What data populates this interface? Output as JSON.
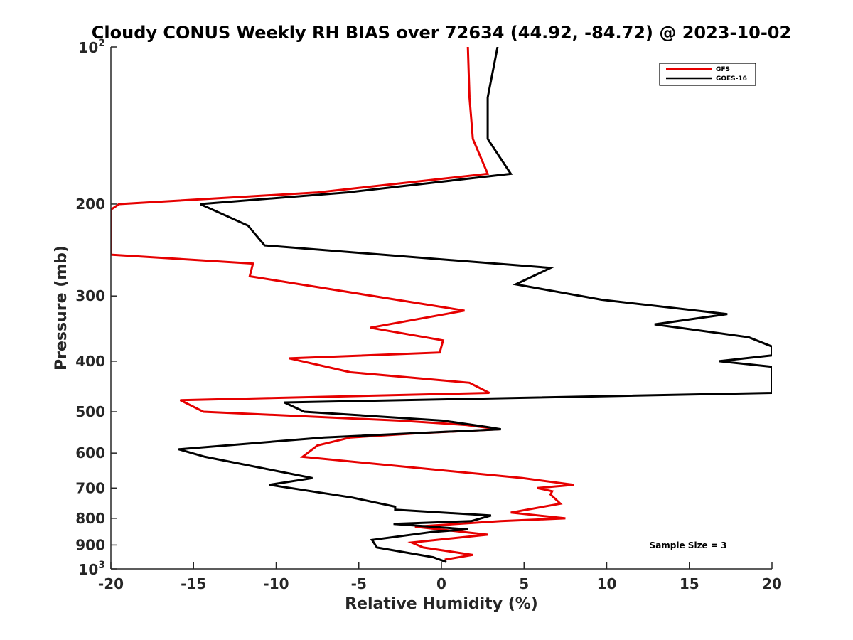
{
  "chart_data": {
    "type": "line",
    "title": "Cloudy CONUS Weekly RH BIAS over 72634 (44.92, -84.72) @ 2023-10-02",
    "xlabel": "Relative Humidity (%)",
    "ylabel": "Pressure (mb)",
    "xlim": [
      -20,
      20
    ],
    "ylim": [
      100,
      1000
    ],
    "y_scale": "log",
    "y_reversed": true,
    "x_ticks": [
      -20,
      -15,
      -10,
      -5,
      0,
      5,
      10,
      15,
      20
    ],
    "x_tick_labels": [
      "-20",
      "-15",
      "-10",
      "-5",
      "0",
      "5",
      "10",
      "15",
      "20"
    ],
    "y_ticks": [
      200,
      300,
      400,
      500,
      600,
      700,
      800,
      900
    ],
    "y_tick_labels": [
      "200",
      "300",
      "400",
      "500",
      "600",
      "700",
      "800",
      "900"
    ],
    "y_end_labels": [
      {
        "value": 100,
        "base": "10",
        "exp": "2"
      },
      {
        "value": 1000,
        "base": "10",
        "exp": "3"
      }
    ],
    "legend": {
      "placement": "top-right",
      "entries": [
        "GFS",
        "GOES-16"
      ]
    },
    "annotation": "Sample Size = 3",
    "series": [
      {
        "name": "GFS",
        "color": "#e60000",
        "points": [
          [
            1.6,
            100
          ],
          [
            1.7,
            125
          ],
          [
            1.9,
            150
          ],
          [
            2.8,
            175
          ],
          [
            -7.5,
            190
          ],
          [
            -19.5,
            200
          ],
          [
            -20,
            205
          ],
          [
            -20,
            250
          ],
          [
            -11.4,
            260
          ],
          [
            -11.6,
            275
          ],
          [
            1.4,
            320
          ],
          [
            -4.3,
            345
          ],
          [
            0.1,
            365
          ],
          [
            -0.1,
            385
          ],
          [
            -9.2,
            395
          ],
          [
            -5.5,
            420
          ],
          [
            1.7,
            440
          ],
          [
            2.9,
            460
          ],
          [
            -15.8,
            475
          ],
          [
            -14.4,
            500
          ],
          [
            -2.5,
            520
          ],
          [
            1.5,
            530
          ],
          [
            3.5,
            540
          ],
          [
            -1.5,
            550
          ],
          [
            -5.5,
            560
          ],
          [
            -7.5,
            580
          ],
          [
            -8.4,
            610
          ],
          [
            4.9,
            670
          ],
          [
            8.0,
            690
          ],
          [
            5.8,
            700
          ],
          [
            6.7,
            710
          ],
          [
            6.6,
            720
          ],
          [
            7.2,
            750
          ],
          [
            4.2,
            780
          ],
          [
            7.5,
            800
          ],
          [
            3.6,
            810
          ],
          [
            -1.6,
            830
          ],
          [
            2.8,
            860
          ],
          [
            -1.8,
            890
          ],
          [
            -1.1,
            910
          ],
          [
            1.9,
            940
          ],
          [
            0.2,
            960
          ]
        ]
      },
      {
        "name": "GOES-16",
        "color": "#000000",
        "points": [
          [
            3.4,
            100
          ],
          [
            2.8,
            125
          ],
          [
            2.8,
            150
          ],
          [
            4.2,
            175
          ],
          [
            -5.7,
            190
          ],
          [
            -14.6,
            200
          ],
          [
            -11.7,
            220
          ],
          [
            -10.7,
            240
          ],
          [
            6.6,
            265
          ],
          [
            4.5,
            285
          ],
          [
            9.7,
            305
          ],
          [
            17.3,
            325
          ],
          [
            12.9,
            340
          ],
          [
            18.6,
            360
          ],
          [
            20,
            375
          ],
          [
            20,
            390
          ],
          [
            16.8,
            400
          ],
          [
            20,
            410
          ],
          [
            20,
            460
          ],
          [
            -9.5,
            480
          ],
          [
            -8.3,
            500
          ],
          [
            0.1,
            520
          ],
          [
            2.8,
            535
          ],
          [
            3.6,
            540
          ],
          [
            -7.1,
            560
          ],
          [
            -15.9,
            590
          ],
          [
            -14.3,
            610
          ],
          [
            -7.8,
            670
          ],
          [
            -10.4,
            690
          ],
          [
            -5.4,
            730
          ],
          [
            -2.8,
            760
          ],
          [
            -2.8,
            770
          ],
          [
            3.0,
            790
          ],
          [
            1.8,
            810
          ],
          [
            -2.9,
            820
          ],
          [
            1.6,
            840
          ],
          [
            -0.6,
            850
          ],
          [
            -4.2,
            880
          ],
          [
            -3.9,
            910
          ],
          [
            -0.5,
            950
          ],
          [
            0.3,
            970
          ]
        ]
      }
    ]
  }
}
